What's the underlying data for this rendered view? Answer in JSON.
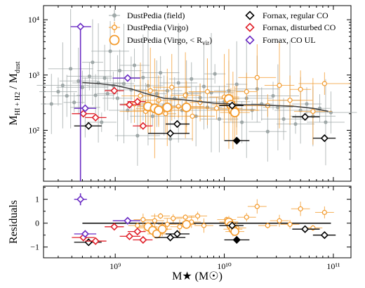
{
  "colors": {
    "field": "#9fa8a8",
    "virgo": "#f39a2b",
    "fornax_regular": "#000000",
    "fornax_disturbed": "#e0202a",
    "fornax_ul": "#6a2bc4",
    "trend": "#444444"
  },
  "chart_data": [
    {
      "panel": "top",
      "type": "scatter",
      "xlabel": "M★ (M☉)",
      "ylabel": "M_HI+H2 / M_dust",
      "xscale": "log",
      "yscale": "log",
      "xlim": [
        220000000.0,
        145000000000.0
      ],
      "ylim": [
        12,
        18000
      ],
      "y_ticks": [
        {
          "v": 100,
          "label": "10²"
        },
        {
          "v": 1000,
          "label": "10³"
        },
        {
          "v": 10000,
          "label": "10⁴"
        }
      ],
      "legend": [
        {
          "label": "DustPedia (field)",
          "marker": "dot",
          "series": "field"
        },
        {
          "label": "DustPedia (Virgo)",
          "marker": "open-circle-small",
          "series": "virgo"
        },
        {
          "label": "DustPedia (Virgo, < R_vir)",
          "marker": "open-circle-large",
          "series": "virgo"
        },
        {
          "label": "Fornax, regular CO",
          "marker": "diamond",
          "series": "fornax_regular"
        },
        {
          "label": "Fornax, disturbed CO",
          "marker": "diamond",
          "series": "fornax_disturbed"
        },
        {
          "label": "Fornax, CO UL",
          "marker": "diamond",
          "series": "fornax_ul"
        }
      ],
      "trend_line": {
        "x": [
          500000000.0,
          700000000.0,
          1000000000.0,
          1400000000.0,
          2000000000.0,
          2800000000.0,
          4000000000.0,
          6000000000.0,
          8000000000.0,
          11000000000.0,
          15000000000.0,
          20000000000.0,
          30000000000.0,
          45000000000.0,
          65000000000.0,
          90000000000.0
        ],
        "y": [
          730,
          700,
          650,
          560,
          450,
          380,
          360,
          330,
          310,
          300,
          290,
          290,
          280,
          270,
          250,
          220
        ]
      },
      "field": [
        [
          260000000.0,
          300
        ],
        [
          300000000.0,
          500
        ],
        [
          330000000.0,
          650
        ],
        [
          360000000.0,
          420
        ],
        [
          390000000.0,
          1300
        ],
        [
          420000000.0,
          320
        ],
        [
          460000000.0,
          780
        ],
        [
          500000000.0,
          600
        ],
        [
          530000000.0,
          260
        ],
        [
          580000000.0,
          950
        ],
        [
          620000000.0,
          1700
        ],
        [
          660000000.0,
          430
        ],
        [
          700000000.0,
          720
        ],
        [
          750000000.0,
          140
        ],
        [
          800000000.0,
          880
        ],
        [
          850000000.0,
          460
        ],
        [
          900000000.0,
          2700
        ],
        [
          960000000.0,
          640
        ],
        [
          1050000000.0,
          380
        ],
        [
          1100000000.0,
          1200
        ],
        [
          1200000000.0,
          700
        ],
        [
          1300000000.0,
          230
        ],
        [
          1400000000.0,
          540
        ],
        [
          1500000000.0,
          1500
        ],
        [
          1600000000.0,
          80
        ],
        [
          1700000000.0,
          420
        ],
        [
          1800000000.0,
          900
        ],
        [
          1900000000.0,
          300
        ],
        [
          2000000000.0,
          640
        ],
        [
          2200000000.0,
          180
        ],
        [
          2400000000.0,
          460
        ],
        [
          2600000000.0,
          1100
        ],
        [
          2800000000.0,
          280
        ],
        [
          3000000000.0,
          520
        ],
        [
          3200000000.0,
          70
        ],
        [
          3500000000.0,
          380
        ],
        [
          3800000000.0,
          720
        ],
        [
          4100000000.0,
          230
        ],
        [
          4500000000.0,
          460
        ],
        [
          5000000000.0,
          850
        ],
        [
          5500000000.0,
          180
        ],
        [
          6000000000.0,
          390
        ],
        [
          6500000000.0,
          620
        ],
        [
          7000000000.0,
          260
        ],
        [
          7600000000.0,
          480
        ],
        [
          8200000000.0,
          1050
        ],
        [
          9000000000.0,
          160
        ],
        [
          10000000000.0,
          330
        ],
        [
          11000000000.0,
          520
        ],
        [
          12000000000.0,
          240
        ],
        [
          13000000000.0,
          680
        ],
        [
          14500000000.0,
          140
        ],
        [
          16000000000.0,
          380
        ],
        [
          18000000000.0,
          230
        ],
        [
          20000000000.0,
          560
        ],
        [
          22000000000.0,
          300
        ],
        [
          25000000000.0,
          95
        ],
        [
          28000000000.0,
          420
        ],
        [
          31000000000.0,
          260
        ],
        [
          35000000000.0,
          160
        ],
        [
          40000000000.0,
          350
        ],
        [
          45000000000.0,
          130
        ],
        [
          50000000000.0,
          230
        ],
        [
          57000000000.0,
          300
        ],
        [
          65000000000.0,
          180
        ],
        [
          75000000000.0,
          250
        ],
        [
          85000000000.0,
          140
        ],
        [
          95000000000.0,
          210
        ]
      ],
      "virgo_small": [
        [
          1500000000.0,
          300
        ],
        [
          1700000000.0,
          420
        ],
        [
          1900000000.0,
          220
        ],
        [
          2100000000.0,
          520
        ],
        [
          2500000000.0,
          350
        ],
        [
          2900000000.0,
          200
        ],
        [
          3300000000.0,
          600
        ],
        [
          3800000000.0,
          270
        ],
        [
          4400000000.0,
          430
        ],
        [
          5100000000.0,
          180
        ],
        [
          6000000000.0,
          320
        ],
        [
          7000000000.0,
          500
        ],
        [
          8500000000.0,
          250
        ],
        [
          10000000000.0,
          400
        ],
        [
          13000000000.0,
          230
        ],
        [
          16000000000.0,
          500
        ],
        [
          20000000000.0,
          900
        ],
        [
          25000000000.0,
          280
        ],
        [
          32000000000.0,
          650
        ],
        [
          40000000000.0,
          350
        ],
        [
          50000000000.0,
          550
        ],
        [
          65000000000.0,
          220
        ],
        [
          83000000000.0,
          700
        ]
      ],
      "virgo_large": [
        [
          2000000000.0,
          270
        ],
        [
          2300000000.0,
          250
        ],
        [
          2500000000.0,
          230
        ],
        [
          3000000000.0,
          260
        ],
        [
          4500000000.0,
          260
        ],
        [
          11000000000.0,
          370
        ],
        [
          11500000000.0,
          290
        ],
        [
          12000000000.0,
          230
        ],
        [
          12500000000.0,
          210
        ]
      ],
      "fornax_regular": [
        {
          "x": 570000000.0,
          "y": 120,
          "xlo": 420000000.0,
          "xhi": 750000000.0
        },
        {
          "x": 3200000000.0,
          "y": 88,
          "xlo": 2000000000.0,
          "xhi": 4800000000.0
        },
        {
          "x": 3700000000.0,
          "y": 130,
          "xlo": 2900000000.0,
          "xhi": 4800000000.0
        },
        {
          "x": 11800000000.0,
          "y": 280,
          "xlo": 9000000000.0,
          "xhi": 15000000000.0
        },
        {
          "x": 55000000000.0,
          "y": 175,
          "xlo": 42000000000.0,
          "xhi": 75000000000.0
        },
        {
          "x": 83000000000.0,
          "y": 72,
          "xlo": 65000000000.0,
          "xhi": 105000000000.0
        }
      ],
      "fornax_regular_filled": [
        {
          "x": 13000000000.0,
          "y": 65,
          "xlo": 10000000000.0,
          "xhi": 17000000000.0
        }
      ],
      "fornax_disturbed": [
        {
          "x": 510000000.0,
          "y": 200,
          "xlo": 400000000.0,
          "xhi": 650000000.0
        },
        {
          "x": 660000000.0,
          "y": 170,
          "xlo": 530000000.0,
          "xhi": 830000000.0
        },
        {
          "x": 980000000.0,
          "y": 520,
          "xlo": 800000000.0,
          "xhi": 1200000000.0
        },
        {
          "x": 1350000000.0,
          "y": 290,
          "xlo": 1100000000.0,
          "xhi": 1700000000.0
        },
        {
          "x": 1600000000.0,
          "y": 330,
          "xlo": 1300000000.0,
          "xhi": 1900000000.0
        },
        {
          "x": 1800000000.0,
          "y": 120,
          "xlo": 1450000000.0,
          "xhi": 2200000000.0
        }
      ],
      "fornax_ul": [
        {
          "x": 480000000.0,
          "y": 7500,
          "xlo": 390000000.0,
          "xhi": 600000000.0
        },
        {
          "x": 530000000.0,
          "y": 250,
          "xlo": 420000000.0,
          "xhi": 670000000.0
        },
        {
          "x": 1300000000.0,
          "y": 880,
          "xlo": 950000000.0,
          "xhi": 1700000000.0
        }
      ]
    },
    {
      "panel": "bottom",
      "type": "scatter",
      "xlabel": "M★ (M☉)",
      "ylabel": "Residuals",
      "xscale": "log",
      "xlim": [
        220000000.0,
        145000000000.0
      ],
      "ylim": [
        -1.45,
        1.55
      ],
      "x_ticks": [
        {
          "v": 1000000000.0,
          "label": "10⁹"
        },
        {
          "v": 10000000000.0,
          "label": "10¹⁰"
        },
        {
          "v": 100000000000.0,
          "label": "10¹¹"
        }
      ],
      "y_ticks": [
        {
          "v": -1,
          "label": "−1"
        },
        {
          "v": 0,
          "label": "0"
        },
        {
          "v": 1,
          "label": "1"
        }
      ],
      "zero_line": {
        "x": [
          500000000.0,
          95000000000.0
        ],
        "y": 0
      },
      "virgo_small": [
        [
          1600000000.0,
          -0.1
        ],
        [
          1800000000.0,
          0.15
        ],
        [
          2000000000.0,
          -0.2
        ],
        [
          2300000000.0,
          0.1
        ],
        [
          2600000000.0,
          0.3
        ],
        [
          3000000000.0,
          -0.05
        ],
        [
          3400000000.0,
          0.2
        ],
        [
          3900000000.0,
          -0.15
        ],
        [
          4400000000.0,
          0.25
        ],
        [
          5000000000.0,
          0.05
        ],
        [
          5700000000.0,
          0.3
        ],
        [
          6500000000.0,
          -0.1
        ],
        [
          10500000000.0,
          0.15
        ],
        [
          13000000000.0,
          -0.2
        ],
        [
          16000000000.0,
          0.25
        ],
        [
          20000000000.0,
          0.7
        ],
        [
          25000000000.0,
          -0.1
        ],
        [
          32000000000.0,
          0.1
        ],
        [
          40000000000.0,
          -0.05
        ],
        [
          50000000000.0,
          0.6
        ],
        [
          65000000000.0,
          -0.2
        ],
        [
          83000000000.0,
          0.45
        ]
      ],
      "virgo_large": [
        [
          2000000000.0,
          -0.15
        ],
        [
          2200000000.0,
          -0.3
        ],
        [
          2400000000.0,
          -0.45
        ],
        [
          2700000000.0,
          -0.25
        ],
        [
          4500000000.0,
          -0.05
        ],
        [
          11000000000.0,
          0.05
        ],
        [
          11500000000.0,
          -0.1
        ],
        [
          12000000000.0,
          -0.25
        ],
        [
          12500000000.0,
          -0.35
        ]
      ],
      "fornax_regular": [
        {
          "x": 570000000.0,
          "y": -0.8,
          "xlo": 420000000.0,
          "xhi": 750000000.0
        },
        {
          "x": 3200000000.0,
          "y": -0.6,
          "xlo": 2300000000.0,
          "xhi": 4400000000.0
        },
        {
          "x": 3700000000.0,
          "y": -0.45,
          "xlo": 2900000000.0,
          "xhi": 4800000000.0
        },
        {
          "x": 11800000000.0,
          "y": -0.1,
          "xlo": 9000000000.0,
          "xhi": 15000000000.0
        },
        {
          "x": 55000000000.0,
          "y": -0.25,
          "xlo": 42000000000.0,
          "xhi": 75000000000.0
        },
        {
          "x": 83000000000.0,
          "y": -0.5,
          "xlo": 65000000000.0,
          "xhi": 105000000000.0
        }
      ],
      "fornax_regular_filled": [
        {
          "x": 13000000000.0,
          "y": -0.7,
          "xlo": 10000000000.0,
          "xhi": 17000000000.0
        }
      ],
      "fornax_disturbed": [
        {
          "x": 510000000.0,
          "y": -0.6,
          "xlo": 400000000.0,
          "xhi": 650000000.0
        },
        {
          "x": 660000000.0,
          "y": -0.75,
          "xlo": 530000000.0,
          "xhi": 830000000.0
        },
        {
          "x": 980000000.0,
          "y": -0.15,
          "xlo": 800000000.0,
          "xhi": 1200000000.0
        },
        {
          "x": 1350000000.0,
          "y": -0.55,
          "xlo": 1100000000.0,
          "xhi": 1700000000.0
        },
        {
          "x": 1600000000.0,
          "y": -0.35,
          "xlo": 1300000000.0,
          "xhi": 1900000000.0
        },
        {
          "x": 1800000000.0,
          "y": -0.7,
          "xlo": 1450000000.0,
          "xhi": 2200000000.0
        }
      ],
      "fornax_ul": [
        {
          "x": 480000000.0,
          "y": 1.0,
          "xlo": 420000000.0,
          "xhi": 550000000.0
        },
        {
          "x": 530000000.0,
          "y": -0.45,
          "xlo": 420000000.0,
          "xhi": 670000000.0
        },
        {
          "x": 1300000000.0,
          "y": 0.1,
          "xlo": 950000000.0,
          "xhi": 1700000000.0
        }
      ]
    }
  ]
}
